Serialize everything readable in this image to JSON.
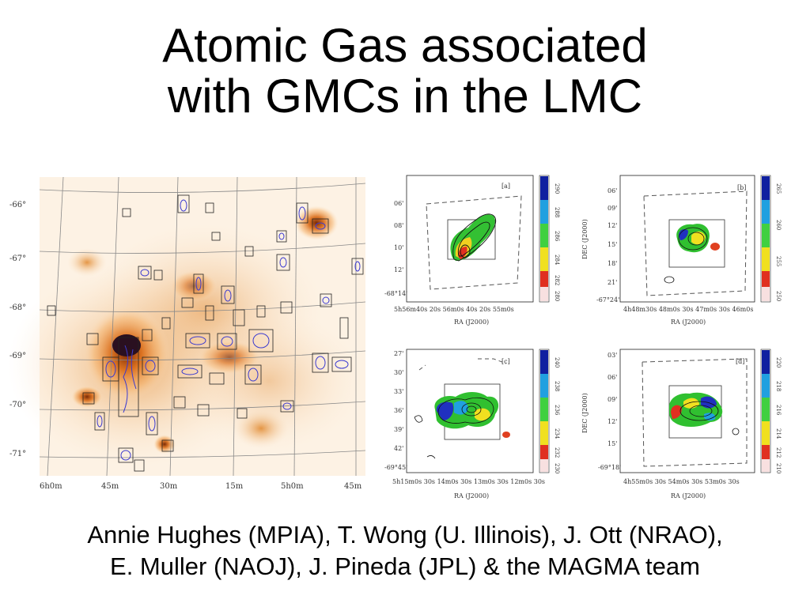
{
  "title_lines": [
    "Atomic Gas associated",
    "with GMCs in the LMC"
  ],
  "author_lines": [
    "Annie Hughes (MPIA), T.  Wong (U. Illinois), J. Ott (NRAO),",
    "E. Muller (NAOJ), J. Pineda (JPL) & the MAGMA team"
  ],
  "lmc_map": {
    "dec_ticks": [
      "-66°",
      "-67°",
      "-68°",
      "-69°",
      "-70°",
      "-71°"
    ],
    "ra_ticks": [
      "6h0m",
      "45m",
      "30m",
      "15m",
      "5h0m",
      "45m"
    ]
  },
  "panels": [
    {
      "tag": "[a]",
      "xlabel": "RA (J2000)",
      "ylabel": "",
      "yticks": [
        "06'",
        "08'",
        "10'",
        "12'",
        "-68°14'"
      ],
      "xticks": "5h56m40s  20s  56m0s  40s  20s  55m0s",
      "cbar": [
        "290",
        "288",
        "286",
        "284",
        "282",
        "280"
      ]
    },
    {
      "tag": "[b]",
      "xlabel": "RA (J2000)",
      "ylabel": "DEC (J2000)",
      "yticks": [
        "06'",
        "09'",
        "12'",
        "15'",
        "18'",
        "21'",
        "-67°24'"
      ],
      "xticks": "4h48m30s  48m0s  30s  47m0s  30s  46m0s",
      "cbar": [
        "265",
        "260",
        "255",
        "250"
      ]
    },
    {
      "tag": "[c]",
      "xlabel": "RA (J2000)",
      "ylabel": "",
      "yticks": [
        "27'",
        "30'",
        "33'",
        "36'",
        "39'",
        "42'",
        "-69°45'"
      ],
      "xticks": "5h15m0s 30s 14m0s 30s 13m0s 30s 12m0s 30s",
      "cbar": [
        "240",
        "238",
        "236",
        "234",
        "232",
        "230"
      ]
    },
    {
      "tag": "[d]",
      "xlabel": "RA (J2000)",
      "ylabel": "DEC (J2000)",
      "yticks": [
        "03'",
        "06'",
        "09'",
        "12'",
        "15'",
        "-69°18'"
      ],
      "xticks": "4h55m0s  30s  54m0s  30s  53m0s  30s",
      "cbar": [
        "220",
        "218",
        "216",
        "214",
        "212",
        "210"
      ]
    }
  ]
}
